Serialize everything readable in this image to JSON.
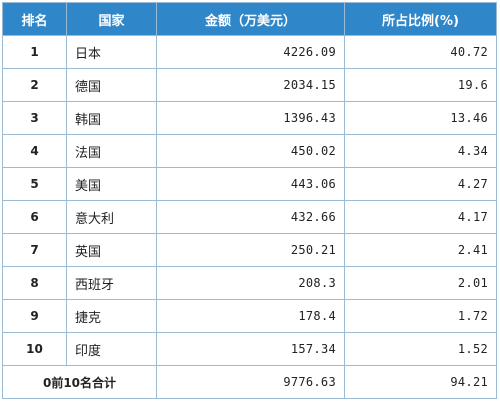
{
  "table": {
    "headers": [
      "排名",
      "国家",
      "金额（万美元）",
      "所占比例(%)"
    ],
    "rows": [
      {
        "rank": "1",
        "country": "日本",
        "amount": "4226.09",
        "share": "40.72"
      },
      {
        "rank": "2",
        "country": "德国",
        "amount": "2034.15",
        "share": "19.6"
      },
      {
        "rank": "3",
        "country": "韩国",
        "amount": "1396.43",
        "share": "13.46"
      },
      {
        "rank": "4",
        "country": "法国",
        "amount": "450.02",
        "share": "4.34"
      },
      {
        "rank": "5",
        "country": "美国",
        "amount": "443.06",
        "share": "4.27"
      },
      {
        "rank": "6",
        "country": "意大利",
        "amount": "432.66",
        "share": "4.17"
      },
      {
        "rank": "7",
        "country": "英国",
        "amount": "250.21",
        "share": "2.41"
      },
      {
        "rank": "8",
        "country": "西班牙",
        "amount": "208.3",
        "share": "2.01"
      },
      {
        "rank": "9",
        "country": "捷克",
        "amount": "178.4",
        "share": "1.72"
      },
      {
        "rank": "10",
        "country": "印度",
        "amount": "157.34",
        "share": "1.52"
      }
    ],
    "total": {
      "label": "0前10名合计",
      "amount": "9776.63",
      "share": "94.21"
    }
  }
}
